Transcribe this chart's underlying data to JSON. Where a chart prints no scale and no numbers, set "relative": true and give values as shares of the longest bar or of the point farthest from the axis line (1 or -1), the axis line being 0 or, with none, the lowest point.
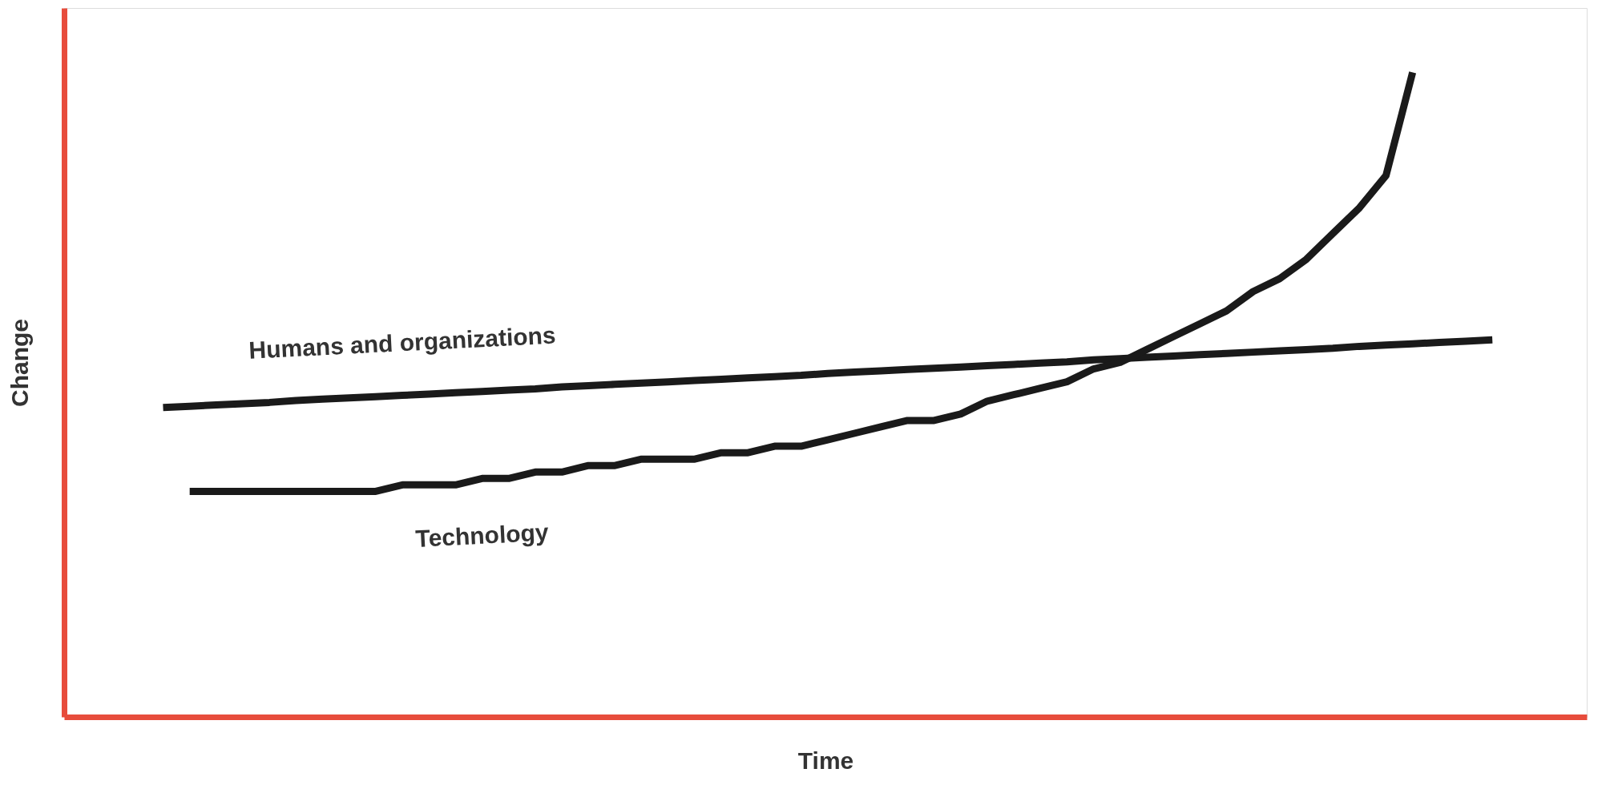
{
  "chart_data": {
    "type": "line",
    "relative": true,
    "xlabel": "Time",
    "ylabel": "Change",
    "tick_labels": false,
    "grid": false,
    "marker": "none",
    "line_style": "solid",
    "categories": [
      null,
      null,
      null,
      null,
      null,
      null,
      null,
      null,
      null,
      null,
      null,
      null,
      null,
      null,
      null,
      null,
      null,
      null,
      null,
      null,
      null,
      null,
      null,
      null,
      null,
      null,
      null,
      null,
      null,
      null,
      null,
      null,
      null,
      null,
      null,
      null,
      null,
      null,
      null,
      null,
      null,
      null,
      null,
      null,
      null,
      null,
      null,
      null,
      null,
      null,
      null
    ],
    "series": [
      {
        "name": "Humans and organizations",
        "color": "#1a1a1a",
        "values": [
          0.48,
          0.482,
          0.484,
          0.486,
          0.488,
          0.491,
          0.493,
          0.495,
          0.497,
          0.499,
          0.501,
          0.503,
          0.505,
          0.507,
          0.509,
          0.512,
          0.514,
          0.516,
          0.518,
          0.52,
          0.522,
          0.524,
          0.526,
          0.528,
          0.53,
          0.533,
          0.535,
          0.537,
          0.539,
          0.541,
          0.543,
          0.545,
          0.547,
          0.549,
          0.551,
          0.554,
          0.556,
          0.558,
          0.56,
          0.562,
          0.564,
          0.566,
          0.568,
          0.57,
          0.572,
          0.575,
          0.577,
          0.579,
          0.581,
          0.583,
          0.585
        ]
      },
      {
        "name": "Technology",
        "color": "#1a1a1a",
        "values": [
          null,
          0.35,
          0.35,
          0.35,
          0.35,
          0.35,
          0.35,
          0.35,
          0.35,
          0.36,
          0.36,
          0.36,
          0.37,
          0.37,
          0.38,
          0.38,
          0.39,
          0.39,
          0.4,
          0.4,
          0.4,
          0.41,
          0.41,
          0.42,
          0.42,
          0.43,
          0.44,
          0.45,
          0.46,
          0.46,
          0.47,
          0.49,
          0.5,
          0.51,
          0.52,
          0.54,
          0.55,
          0.57,
          0.59,
          0.61,
          0.63,
          0.66,
          0.68,
          0.71,
          0.75,
          0.79,
          0.84,
          1.0,
          null,
          null,
          null
        ]
      }
    ]
  }
}
